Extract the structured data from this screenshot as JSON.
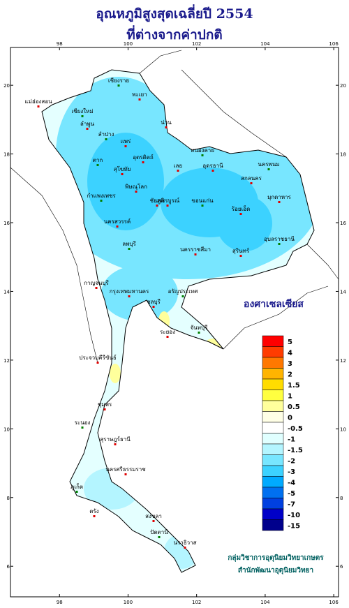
{
  "header": {
    "title": "อุณหภูมิสูงสุดเฉลี่ยปี 2554",
    "subtitle": "ที่ต่างจากค่าปกติ"
  },
  "map": {
    "lon_range": [
      96.57,
      106.14
    ],
    "lat_range": [
      5.11,
      21.1
    ],
    "lon_ticks": [
      98,
      100,
      102,
      104,
      106
    ],
    "lat_ticks": [
      6,
      8,
      10,
      12,
      14,
      16,
      18,
      20
    ],
    "places": [
      "เชียงราย",
      "แม่ฮ่องสอน",
      "พะเยา",
      "เชียงใหม่",
      "ลำพูน",
      "น่าน",
      "ลำปาง",
      "แพร่",
      "อุตรดิตถ์",
      "ตาก",
      "สุโขทัย",
      "พิษณุโลก",
      "กำแพงเพชร",
      "เพชรบูรณ์",
      "นครสวรรค์",
      "หนองคาย",
      "อุดรธานี",
      "เลย",
      "นครพนม",
      "สกลนคร",
      "มุกดาหาร",
      "ขอนแก่น",
      "ชัยภูมิ",
      "ร้อยเอ็ด",
      "อุบลราชธานี",
      "นครราชสีมา",
      "สุรินทร์",
      "ลพบุรี",
      "กาญจนบุรี",
      "กรุงเทพมหานคร",
      "อรัญประเทศ",
      "ชลบุรี",
      "ระยอง",
      "จันทบุรี",
      "ประจวบคีรีขันธ์",
      "ชุมพร",
      "ระนอง",
      "สุราษฎร์ธานี",
      "นครศรีธรรมราช",
      "ภูเก็ต",
      "ตรัง",
      "สงขลา",
      "ปัตตานี",
      "นราธิวาส"
    ]
  },
  "legend": {
    "title": "องศาเซลเซียส",
    "levels": [
      5,
      4,
      3,
      2,
      1.5,
      1,
      0.5,
      0,
      -0.5,
      -1,
      -1.5,
      -2,
      -3,
      -4,
      -5,
      -7,
      -10,
      -15
    ],
    "colors": [
      "#ff0000",
      "#ff3c00",
      "#ff7800",
      "#ffb400",
      "#ffdc00",
      "#ffff40",
      "#ffff9c",
      "#ffffe6",
      "#ffffff",
      "#e0ffff",
      "#b4f5ff",
      "#78e6ff",
      "#3cd2ff",
      "#00aaff",
      "#0070f0",
      "#0040e0",
      "#0000c8",
      "#00008c"
    ]
  },
  "credits": [
    "กลุ่มวิชาการอุตุนิยมวิทยาเกษตร",
    "สำนักพัฒนาอุตุนิยมวิทยา"
  ]
}
